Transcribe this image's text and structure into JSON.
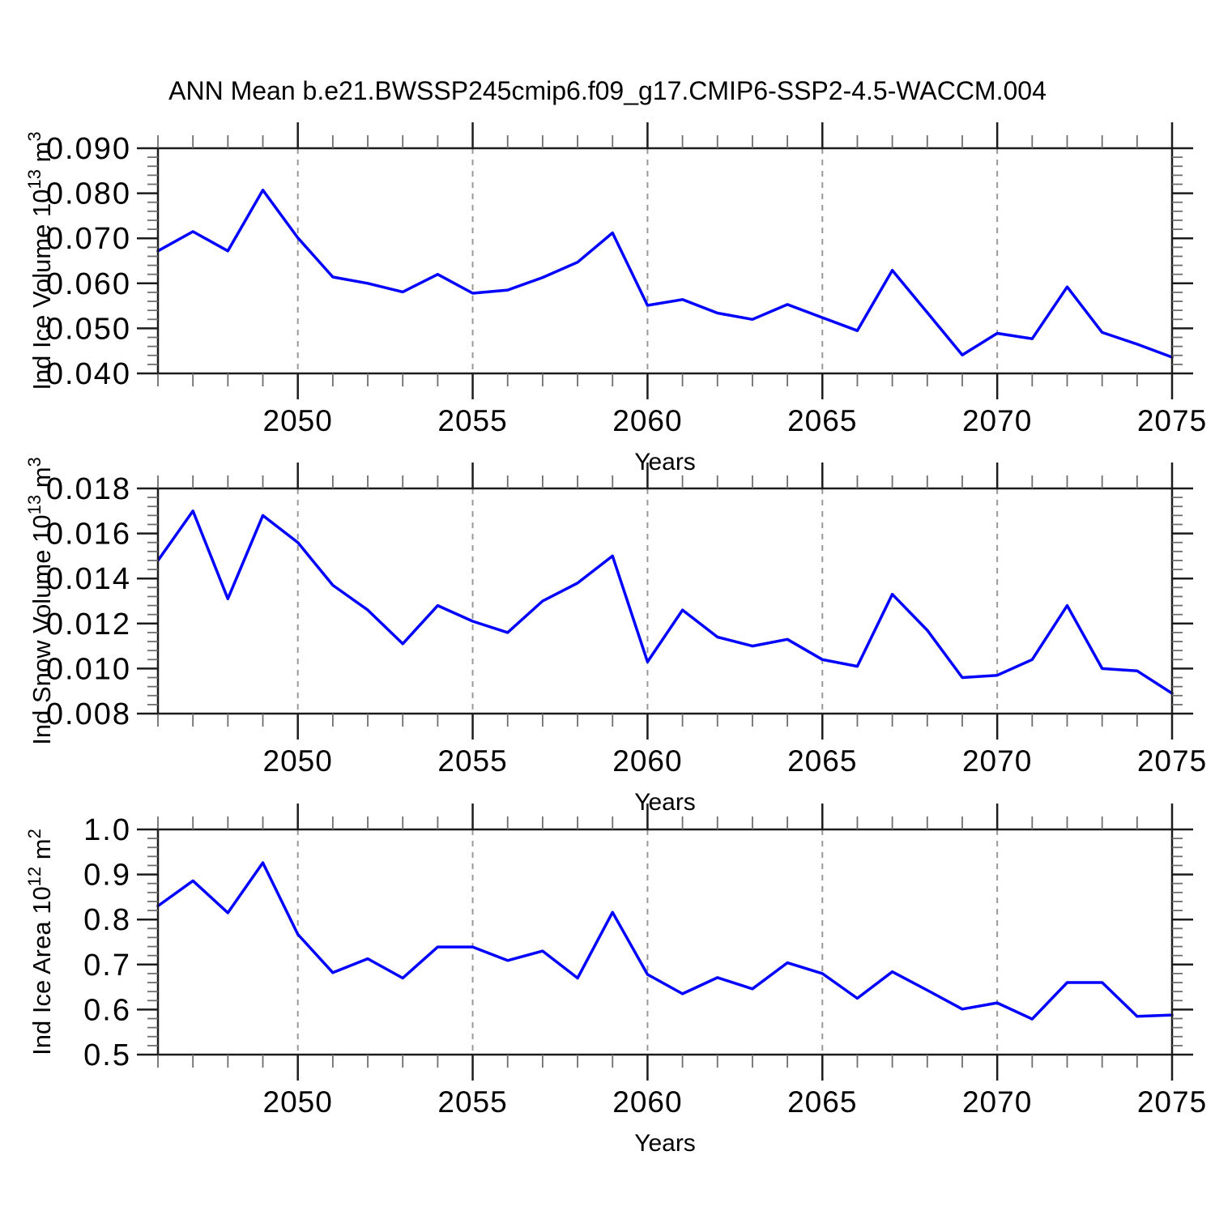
{
  "title": "ANN Mean b.e21.BWSSP245cmip6.f09_g17.CMIP6-SSP2-4.5-WACCM.004",
  "style": {
    "line_color": "#0000ff",
    "axis_color": "#1c1c1c",
    "minor_tick_color": "#6e6e6e",
    "grid_color": "#999999",
    "text_color": "#000000",
    "background": "#ffffff"
  },
  "chart_data": [
    {
      "id": "ice-volume",
      "type": "line",
      "series_name": "Ind Ice Volume",
      "xlabel": "Years",
      "ylabel": "Ind Ice Volume 10^13 m^3",
      "ylabel_parts": [
        {
          "t": "Ind Ice Volume 10"
        },
        {
          "sup": "13"
        },
        {
          "t": " m"
        },
        {
          "sup": "3"
        }
      ],
      "xlim": [
        2046,
        2075
      ],
      "ylim": [
        0.04,
        0.09
      ],
      "xticks": [
        2050,
        2055,
        2060,
        2065,
        2070,
        2075
      ],
      "xtick_labels": [
        "2050",
        "2055",
        "2060",
        "2065",
        "2070",
        "2075"
      ],
      "grid_xticks": [
        2050,
        2055,
        2060,
        2065,
        2070
      ],
      "yticks": [
        0.04,
        0.05,
        0.06,
        0.07,
        0.08,
        0.09
      ],
      "ytick_labels": [
        "0.040",
        "0.050",
        "0.060",
        "0.070",
        "0.080",
        "0.090"
      ],
      "y_minor_per_major": 4,
      "x_minor_step": 1,
      "grid_on": true,
      "x": [
        2046,
        2047,
        2048,
        2049,
        2050,
        2051,
        2052,
        2053,
        2054,
        2055,
        2056,
        2057,
        2058,
        2059,
        2060,
        2061,
        2062,
        2063,
        2064,
        2065,
        2066,
        2067,
        2068,
        2069,
        2070,
        2071,
        2072,
        2073,
        2074,
        2075
      ],
      "values": [
        0.0672,
        0.0715,
        0.0672,
        0.0807,
        0.0701,
        0.0614,
        0.06,
        0.0581,
        0.062,
        0.0578,
        0.0585,
        0.0613,
        0.0647,
        0.0712,
        0.0551,
        0.0564,
        0.0534,
        0.052,
        0.0553,
        0.0524,
        0.0495,
        0.0629,
        0.0535,
        0.0441,
        0.0489,
        0.0477,
        0.0592,
        0.0491,
        0.0465,
        0.0436
      ]
    },
    {
      "id": "snow-volume",
      "type": "line",
      "series_name": "Ind Snow Volume",
      "xlabel": "Years",
      "ylabel": "Ind Snow Volume 10^13 m^3",
      "ylabel_parts": [
        {
          "t": "Ind Snow Volume 10"
        },
        {
          "sup": "13"
        },
        {
          "t": " m"
        },
        {
          "sup": "3"
        }
      ],
      "xlim": [
        2046,
        2075
      ],
      "ylim": [
        0.008,
        0.018
      ],
      "xticks": [
        2050,
        2055,
        2060,
        2065,
        2070,
        2075
      ],
      "xtick_labels": [
        "2050",
        "2055",
        "2060",
        "2065",
        "2070",
        "2075"
      ],
      "grid_xticks": [
        2050,
        2055,
        2060,
        2065,
        2070
      ],
      "yticks": [
        0.008,
        0.01,
        0.012,
        0.014,
        0.016,
        0.018
      ],
      "ytick_labels": [
        "0.008",
        "0.010",
        "0.012",
        "0.014",
        "0.016",
        "0.018"
      ],
      "y_minor_per_major": 4,
      "x_minor_step": 1,
      "grid_on": true,
      "x": [
        2046,
        2047,
        2048,
        2049,
        2050,
        2051,
        2052,
        2053,
        2054,
        2055,
        2056,
        2057,
        2058,
        2059,
        2060,
        2061,
        2062,
        2063,
        2064,
        2065,
        2066,
        2067,
        2068,
        2069,
        2070,
        2071,
        2072,
        2073,
        2074,
        2075
      ],
      "values": [
        0.0148,
        0.017,
        0.0131,
        0.0168,
        0.0156,
        0.0137,
        0.0126,
        0.0111,
        0.0128,
        0.0121,
        0.0116,
        0.013,
        0.0138,
        0.015,
        0.0103,
        0.0126,
        0.0114,
        0.011,
        0.0113,
        0.0104,
        0.0101,
        0.0133,
        0.0117,
        0.0096,
        0.0097,
        0.0104,
        0.0128,
        0.01,
        0.0099,
        0.0089
      ]
    },
    {
      "id": "ice-area",
      "type": "line",
      "series_name": "Ind Ice Area",
      "xlabel": "Years",
      "ylabel": "Ind Ice Area 10^12 m^2",
      "ylabel_parts": [
        {
          "t": "Ind Ice Area 10"
        },
        {
          "sup": "12"
        },
        {
          "t": " m"
        },
        {
          "sup": "2"
        }
      ],
      "xlim": [
        2046,
        2075
      ],
      "ylim": [
        0.5,
        1.0
      ],
      "xticks": [
        2050,
        2055,
        2060,
        2065,
        2070,
        2075
      ],
      "xtick_labels": [
        "2050",
        "2055",
        "2060",
        "2065",
        "2070",
        "2075"
      ],
      "grid_xticks": [
        2050,
        2055,
        2060,
        2065,
        2070
      ],
      "yticks": [
        0.5,
        0.6,
        0.7,
        0.8,
        0.9,
        1.0
      ],
      "ytick_labels": [
        "0.5",
        "0.6",
        "0.7",
        "0.8",
        "0.9",
        "1.0"
      ],
      "y_minor_per_major": 4,
      "x_minor_step": 1,
      "grid_on": true,
      "x": [
        2046,
        2047,
        2048,
        2049,
        2050,
        2051,
        2052,
        2053,
        2054,
        2055,
        2056,
        2057,
        2058,
        2059,
        2060,
        2061,
        2062,
        2063,
        2064,
        2065,
        2066,
        2067,
        2068,
        2069,
        2070,
        2071,
        2072,
        2073,
        2074,
        2075
      ],
      "values": [
        0.83,
        0.886,
        0.815,
        0.926,
        0.767,
        0.682,
        0.713,
        0.67,
        0.739,
        0.739,
        0.709,
        0.73,
        0.67,
        0.816,
        0.678,
        0.635,
        0.671,
        0.646,
        0.704,
        0.68,
        0.625,
        0.684,
        0.643,
        0.601,
        0.615,
        0.579,
        0.66,
        0.66,
        0.585,
        0.588
      ]
    }
  ]
}
